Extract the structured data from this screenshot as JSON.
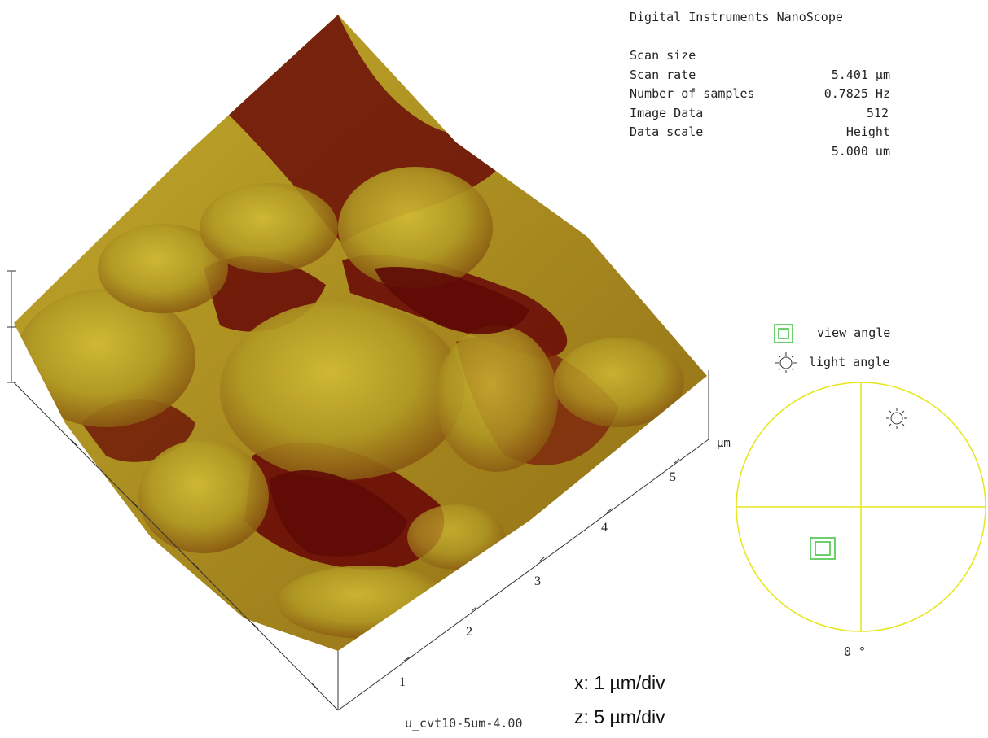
{
  "header": {
    "instrument": "Digital Instruments NanoScope",
    "params": [
      {
        "key": "Scan size",
        "value": "5.401 µm"
      },
      {
        "key": "Scan rate",
        "value": "0.7825 Hz"
      },
      {
        "key": "Number of samples",
        "value": "512"
      },
      {
        "key": "Image Data",
        "value": "Height"
      },
      {
        "key": "Data scale",
        "value": "5.000 um"
      }
    ]
  },
  "axis": {
    "unit_label": "µm",
    "ticks": [
      "1",
      "2",
      "3",
      "4",
      "5"
    ]
  },
  "legend": {
    "view_label": "view angle",
    "light_label": "light angle",
    "angle_readout": "0 °"
  },
  "scale": {
    "x": "x: 1 µm/div",
    "z": "z: 5 µm/div"
  },
  "footer": {
    "filename": "u_cvt10-5um-4.00"
  },
  "colors": {
    "surface_dark": "#6b0d08",
    "surface_light": "#b9a526",
    "circle": "#e6e61a",
    "view_marker": "#3cc23c"
  }
}
